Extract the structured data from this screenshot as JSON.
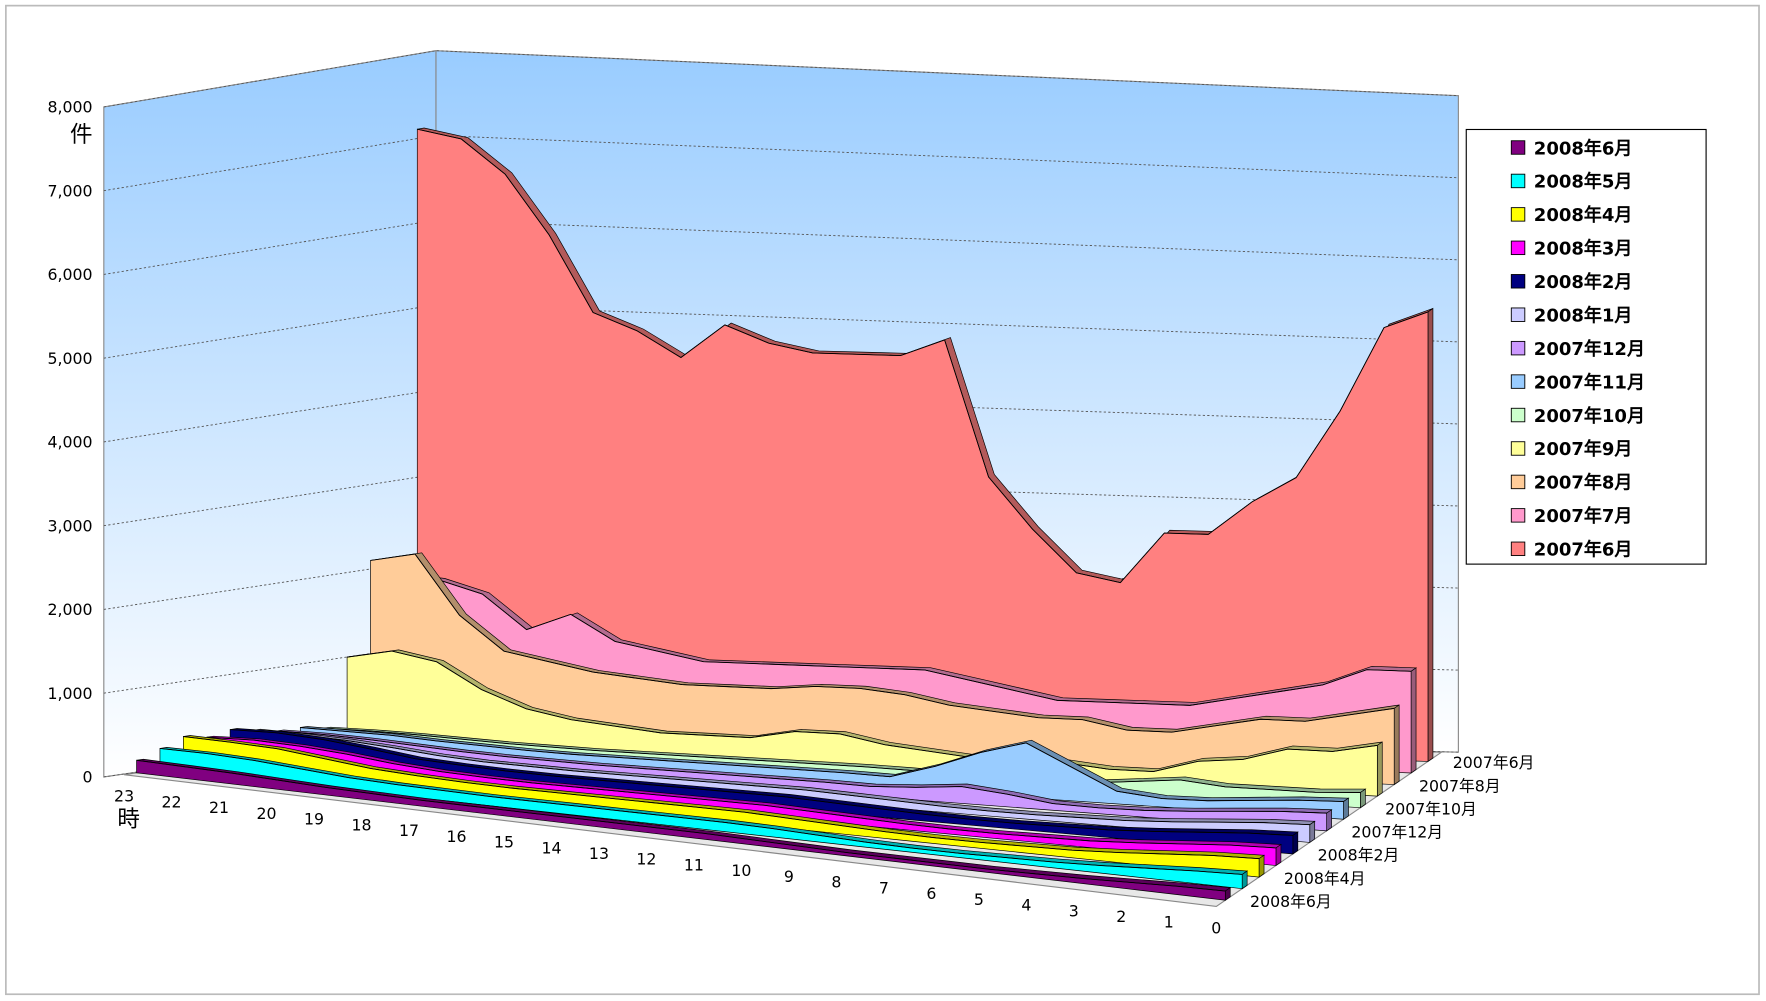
{
  "chart_data": {
    "type": "area3d",
    "y_label": "件",
    "x_label": "時",
    "categories": [
      "23",
      "22",
      "21",
      "20",
      "19",
      "18",
      "17",
      "16",
      "15",
      "14",
      "13",
      "12",
      "11",
      "10",
      "9",
      "8",
      "7",
      "6",
      "5",
      "4",
      "3",
      "2",
      "1",
      "0"
    ],
    "ylim": [
      0,
      8000
    ],
    "yticks": [
      0,
      {
        "value": 1000,
        "label": "1,000"
      },
      {
        "value": 2000,
        "label": "2,000"
      },
      {
        "value": 3000,
        "label": "3,000"
      },
      {
        "value": 4000,
        "label": "4,000"
      },
      {
        "value": 5000,
        "label": "5,000"
      },
      {
        "value": 6000,
        "label": "6,000"
      },
      {
        "value": 7000,
        "label": "7,000"
      },
      {
        "value": 8000,
        "label": "8,000"
      }
    ],
    "grid": true,
    "legend": "right",
    "series": [
      {
        "name": "2008年6月",
        "color": "#800080",
        "values": [
          150,
          140,
          130,
          110,
          90,
          80,
          70,
          70,
          70,
          70,
          70,
          70,
          70,
          60,
          50,
          40,
          40,
          40,
          40,
          50,
          60,
          80,
          100,
          110
        ]
      },
      {
        "name": "2008年5月",
        "color": "#00ffff",
        "values": [
          250,
          250,
          230,
          190,
          150,
          130,
          120,
          110,
          110,
          110,
          110,
          110,
          110,
          100,
          80,
          60,
          50,
          50,
          60,
          70,
          90,
          120,
          150,
          170
        ]
      },
      {
        "name": "2008年4月",
        "color": "#ffff00",
        "values": [
          350,
          340,
          320,
          260,
          200,
          170,
          150,
          140,
          140,
          140,
          140,
          140,
          140,
          120,
          100,
          80,
          70,
          70,
          80,
          90,
          120,
          160,
          200,
          220
        ]
      },
      {
        "name": "2008年3月",
        "color": "#ff00ff",
        "values": [
          300,
          320,
          300,
          260,
          200,
          160,
          140,
          130,
          130,
          130,
          130,
          130,
          130,
          110,
          90,
          70,
          60,
          60,
          70,
          80,
          110,
          150,
          190,
          210
        ]
      },
      {
        "name": "2008年2月",
        "color": "#000080",
        "values": [
          350,
          360,
          330,
          270,
          200,
          170,
          150,
          140,
          140,
          140,
          140,
          140,
          140,
          120,
          100,
          80,
          70,
          70,
          80,
          90,
          120,
          160,
          200,
          220
        ]
      },
      {
        "name": "2008年1月",
        "color": "#ccccff",
        "values": [
          300,
          290,
          270,
          230,
          180,
          150,
          140,
          130,
          130,
          130,
          130,
          130,
          130,
          110,
          90,
          70,
          60,
          60,
          70,
          80,
          110,
          150,
          190,
          210
        ]
      },
      {
        "name": "2007年12月",
        "color": "#cc99ff",
        "values": [
          250,
          250,
          230,
          200,
          170,
          150,
          140,
          130,
          130,
          130,
          130,
          130,
          130,
          120,
          150,
          200,
          150,
          80,
          70,
          80,
          110,
          150,
          190,
          210
        ]
      },
      {
        "name": "2007年11月",
        "color": "#99ccff",
        "values": [
          250,
          240,
          230,
          200,
          180,
          160,
          150,
          150,
          150,
          150,
          150,
          150,
          150,
          140,
          300,
          500,
          650,
          400,
          150,
          100,
          110,
          150,
          190,
          210
        ]
      },
      {
        "name": "2007年10月",
        "color": "#ccffcc",
        "values": [
          200,
          200,
          190,
          170,
          150,
          140,
          130,
          130,
          130,
          130,
          130,
          130,
          130,
          120,
          100,
          90,
          80,
          100,
          150,
          200,
          150,
          150,
          150,
          180
        ]
      },
      {
        "name": "2007年9月",
        "color": "#ffff99",
        "values": [
          1000,
          1100,
          1000,
          700,
          500,
          400,
          350,
          300,
          300,
          300,
          400,
          400,
          300,
          250,
          200,
          200,
          200,
          150,
          150,
          300,
          350,
          500,
          500,
          600
        ]
      },
      {
        "name": "2007年8月",
        "color": "#ffcc99",
        "values": [
          2100,
          2200,
          1500,
          1100,
          1000,
          900,
          850,
          800,
          800,
          800,
          850,
          850,
          800,
          700,
          650,
          600,
          600,
          500,
          500,
          600,
          700,
          700,
          800,
          900
        ]
      },
      {
        "name": "2007年7月",
        "color": "#ff99cc",
        "values": [
          1900,
          1850,
          1700,
          1300,
          1500,
          1200,
          1100,
          1000,
          1000,
          1000,
          1000,
          1000,
          1000,
          900,
          800,
          700,
          700,
          700,
          700,
          800,
          900,
          1000,
          1200,
          1200
        ]
      },
      {
        "name": "2007年6月",
        "color": "#ff8080",
        "values": [
          7100,
          7000,
          6600,
          5900,
          5000,
          4800,
          4500,
          4900,
          4700,
          4600,
          4600,
          4600,
          4800,
          3200,
          2600,
          2100,
          2000,
          2600,
          2600,
          3000,
          3300,
          4100,
          5100,
          5300
        ]
      }
    ]
  }
}
